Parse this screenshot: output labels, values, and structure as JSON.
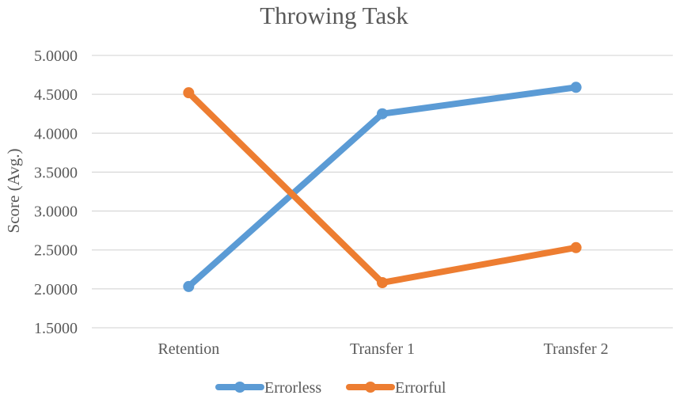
{
  "chart_data": {
    "type": "line",
    "title": "Throwing Task",
    "xlabel": "",
    "ylabel": "Score (Avg.)",
    "categories": [
      "Retention",
      "Transfer 1",
      "Transfer 2"
    ],
    "yticks": [
      "1.5000",
      "2.0000",
      "2.5000",
      "3.0000",
      "3.5000",
      "4.0000",
      "4.5000",
      "5.0000"
    ],
    "ylim": [
      1.5,
      5.0
    ],
    "grid": true,
    "legend_position": "bottom",
    "series": [
      {
        "name": "Errorless",
        "values": [
          2.03,
          4.25,
          4.59
        ],
        "color": "#5b9bd5"
      },
      {
        "name": "Errorful",
        "values": [
          4.52,
          2.08,
          2.53
        ],
        "color": "#ed7d31"
      }
    ]
  }
}
